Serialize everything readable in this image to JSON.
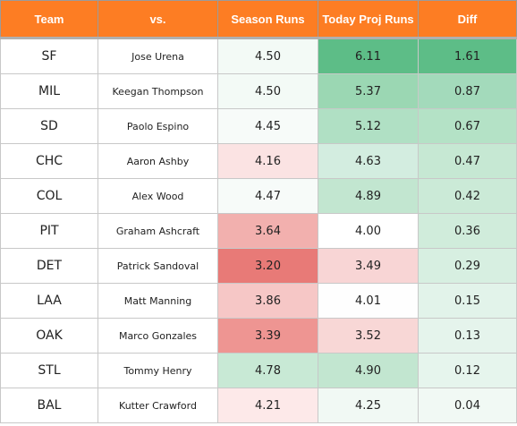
{
  "headers": {
    "team": "Team",
    "vs": "vs.",
    "season": "Season Runs",
    "proj": "Today Proj Runs",
    "diff": "Diff"
  },
  "rows": [
    {
      "team": "SF",
      "vs": "Jose Urena",
      "season": "4.50",
      "proj": "6.11",
      "diff": "1.61",
      "season_bg": "#f3faf6",
      "proj_bg": "#5dbd87",
      "diff_bg": "#5dbd87"
    },
    {
      "team": "MIL",
      "vs": "Keegan Thompson",
      "season": "4.50",
      "proj": "5.37",
      "diff": "0.87",
      "season_bg": "#f3faf6",
      "proj_bg": "#9bd7b3",
      "diff_bg": "#a3dabb"
    },
    {
      "team": "SD",
      "vs": "Paolo Espino",
      "season": "4.45",
      "proj": "5.12",
      "diff": "0.67",
      "season_bg": "#f7fbf9",
      "proj_bg": "#b0e0c4",
      "diff_bg": "#b4e2c6"
    },
    {
      "team": "CHC",
      "vs": "Aaron Ashby",
      "season": "4.16",
      "proj": "4.63",
      "diff": "0.47",
      "season_bg": "#fbe3e3",
      "proj_bg": "#d3ede0",
      "diff_bg": "#c6e8d3"
    },
    {
      "team": "COL",
      "vs": "Alex Wood",
      "season": "4.47",
      "proj": "4.89",
      "diff": "0.42",
      "season_bg": "#f7fbf9",
      "proj_bg": "#c2e6d0",
      "diff_bg": "#cbead7"
    },
    {
      "team": "PIT",
      "vs": "Graham Ashcraft",
      "season": "3.64",
      "proj": "4.00",
      "diff": "0.36",
      "season_bg": "#f2b0ae",
      "proj_bg": "#ffffff",
      "diff_bg": "#d0ecdb"
    },
    {
      "team": "DET",
      "vs": "Patrick Sandoval",
      "season": "3.20",
      "proj": "3.49",
      "diff": "0.29",
      "season_bg": "#e87a77",
      "proj_bg": "#f8d5d5",
      "diff_bg": "#d7efe1"
    },
    {
      "team": "LAA",
      "vs": "Matt Manning",
      "season": "3.86",
      "proj": "4.01",
      "diff": "0.15",
      "season_bg": "#f6c7c6",
      "proj_bg": "#fefefe",
      "diff_bg": "#e2f3ea"
    },
    {
      "team": "OAK",
      "vs": "Marco Gonzales",
      "season": "3.39",
      "proj": "3.52",
      "diff": "0.13",
      "season_bg": "#ee9592",
      "proj_bg": "#f8d7d6",
      "diff_bg": "#e5f4ec"
    },
    {
      "team": "STL",
      "vs": "Tommy Henry",
      "season": "4.78",
      "proj": "4.90",
      "diff": "0.12",
      "season_bg": "#c8e9d5",
      "proj_bg": "#c2e6d0",
      "diff_bg": "#e6f5ed"
    },
    {
      "team": "BAL",
      "vs": "Kutter Crawford",
      "season": "4.21",
      "proj": "4.25",
      "diff": "0.04",
      "season_bg": "#fde9e9",
      "proj_bg": "#f1f9f4",
      "diff_bg": "#f1f9f4"
    }
  ],
  "colors": {
    "header_bg": "#fd7d23",
    "header_text": "#ffffff"
  }
}
